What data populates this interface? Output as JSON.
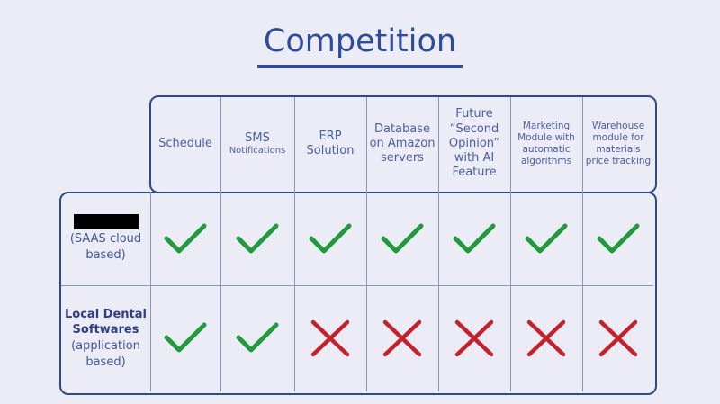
{
  "title": "Competition",
  "columns": [
    {
      "label": "Schedule",
      "size": 13
    },
    {
      "label": "SMS",
      "sub": "Notifications",
      "size": 13
    },
    {
      "label": "ERP Solution",
      "size": 13
    },
    {
      "label": "Database on Amazon servers",
      "size": 13
    },
    {
      "label": "Future “Second Opinion” with AI Feature",
      "size": 13
    },
    {
      "label": "Marketing Module with automatic algorithms",
      "size": 10.5
    },
    {
      "label": "Warehouse module for materials price tracking",
      "size": 10.5
    }
  ],
  "rows": [
    {
      "name": "[redacted]",
      "label": "",
      "sub": "(SAAS cloud based)",
      "values": [
        true,
        true,
        true,
        true,
        true,
        true,
        true
      ]
    },
    {
      "name": "",
      "label": "Local Dental Softwares",
      "sub": "(application based)",
      "values": [
        true,
        true,
        false,
        false,
        false,
        false,
        false
      ]
    }
  ],
  "colors": {
    "check": "#1f9a3c",
    "cross": "#c8202a",
    "title": "#2d4c9e",
    "border": "#2d4a8c"
  },
  "icons": {
    "yes": "checkmark-icon",
    "no": "cross-icon"
  }
}
